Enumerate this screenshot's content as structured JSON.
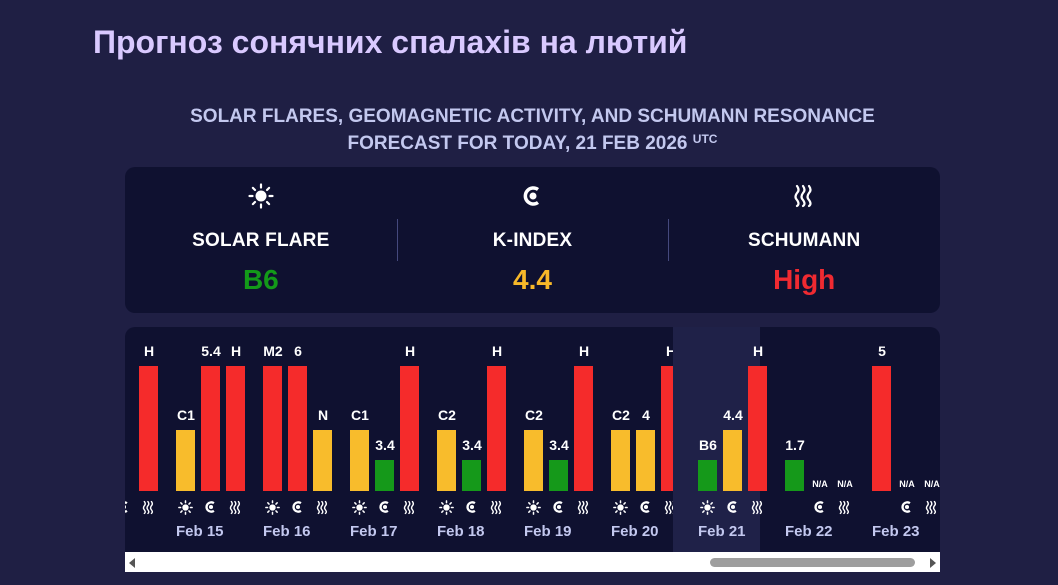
{
  "page": {
    "title": "Прогноз сонячних спалахів на лютий",
    "subtitle_line1": "SOLAR FLARES, GEOMAGNETIC ACTIVITY, AND SCHUMANN RESONANCE",
    "subtitle_line2": "FORECAST FOR TODAY, 21 FEB 2026",
    "subtitle_sup": "UTC"
  },
  "summary": [
    {
      "icon": "sun-icon",
      "label": "SOLAR FLARE",
      "value": "B6",
      "color": "#139a19"
    },
    {
      "icon": "magnet-icon",
      "label": "K-INDEX",
      "value": "4.4",
      "color": "#f7b829"
    },
    {
      "icon": "waves-icon",
      "label": "SCHUMANN",
      "value": "High",
      "color": "#f02a31"
    }
  ],
  "colors": {
    "red": "#f52b2b",
    "yellow": "#f8bc2c",
    "green": "#15991a"
  },
  "days": [
    {
      "date": "",
      "partial": true,
      "bars": [
        null,
        null,
        {
          "label": "H",
          "level": 1.0,
          "color": "red"
        }
      ]
    },
    {
      "date": "Feb 15",
      "bars": [
        {
          "label": "C1",
          "level": 0.49,
          "color": "yellow"
        },
        {
          "label": "5.4",
          "level": 1.0,
          "color": "red"
        },
        {
          "label": "H",
          "level": 1.0,
          "color": "red"
        }
      ]
    },
    {
      "date": "Feb 16",
      "bars": [
        {
          "label": "M2",
          "level": 1.0,
          "color": "red"
        },
        {
          "label": "6",
          "level": 1.0,
          "color": "red"
        },
        {
          "label": "N",
          "level": 0.49,
          "color": "yellow"
        }
      ]
    },
    {
      "date": "Feb 17",
      "bars": [
        {
          "label": "C1",
          "level": 0.49,
          "color": "yellow"
        },
        {
          "label": "3.4",
          "level": 0.25,
          "color": "green"
        },
        {
          "label": "H",
          "level": 1.0,
          "color": "red"
        }
      ]
    },
    {
      "date": "Feb 18",
      "bars": [
        {
          "label": "C2",
          "level": 0.49,
          "color": "yellow"
        },
        {
          "label": "3.4",
          "level": 0.25,
          "color": "green"
        },
        {
          "label": "H",
          "level": 1.0,
          "color": "red"
        }
      ]
    },
    {
      "date": "Feb 19",
      "bars": [
        {
          "label": "C2",
          "level": 0.49,
          "color": "yellow"
        },
        {
          "label": "3.4",
          "level": 0.25,
          "color": "green"
        },
        {
          "label": "H",
          "level": 1.0,
          "color": "red"
        }
      ]
    },
    {
      "date": "Feb 20",
      "bars": [
        {
          "label": "C2",
          "level": 0.49,
          "color": "yellow"
        },
        {
          "label": "4",
          "level": 0.49,
          "color": "yellow"
        },
        {
          "label": "H",
          "level": 1.0,
          "color": "red"
        }
      ]
    },
    {
      "date": "Feb 21",
      "today": true,
      "bars": [
        {
          "label": "B6",
          "level": 0.25,
          "color": "green"
        },
        {
          "label": "4.4",
          "level": 0.49,
          "color": "yellow"
        },
        {
          "label": "H",
          "level": 1.0,
          "color": "red"
        }
      ]
    },
    {
      "date": "Feb 22",
      "nosun": true,
      "bars": [
        {
          "label": "1.7",
          "level": 0.25,
          "color": "green"
        },
        {
          "label": "N/A",
          "level": 0,
          "color": "none"
        },
        {
          "label": "N/A",
          "level": 0,
          "color": "none"
        }
      ]
    },
    {
      "date": "Feb 23",
      "nosun": true,
      "bars": [
        {
          "label": "5",
          "level": 1.0,
          "color": "red"
        },
        {
          "label": "N/A",
          "level": 0,
          "color": "none"
        },
        {
          "label": "N/A",
          "level": 0,
          "color": "none"
        }
      ]
    }
  ]
}
